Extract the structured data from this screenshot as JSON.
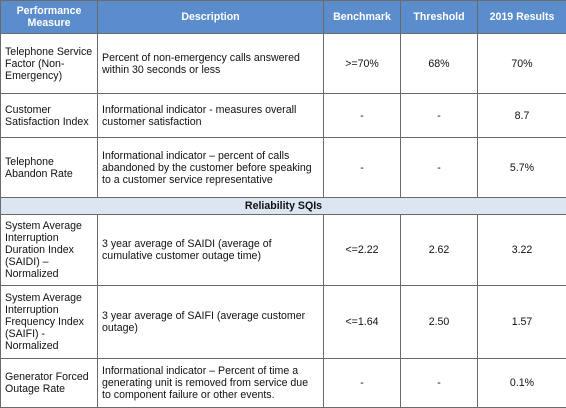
{
  "columns": [
    "Performance Measure",
    "Description",
    "Benchmark",
    "Threshold",
    "2019 Results"
  ],
  "rows_top": [
    {
      "measure": "Telephone Service Factor (Non-Emergency)",
      "description": "Percent of non-emergency calls answered within 30 seconds or less",
      "benchmark": ">=70%",
      "threshold": "68%",
      "result": "70%"
    },
    {
      "measure": "Customer Satisfaction Index",
      "description": "Informational indicator - measures overall customer satisfaction",
      "benchmark": "-",
      "threshold": "-",
      "result": "8.7"
    },
    {
      "measure": "Telephone Abandon Rate",
      "description": "Informational indicator – percent of calls abandoned by the customer before speaking to a customer service representative",
      "benchmark": "-",
      "threshold": "-",
      "result": "5.7%"
    }
  ],
  "section_title": "Reliability SQIs",
  "rows_reliability": [
    {
      "measure": "System Average Interruption Duration Index (SAIDI) – Normalized",
      "description": "3 year average of SAIDI (average of cumulative customer outage time)",
      "benchmark": "<=2.22",
      "threshold": "2.62",
      "result": "3.22"
    },
    {
      "measure": "System Average Interruption Frequency Index (SAIFI) - Normalized",
      "description": "3 year average of SAIFI (average customer outage)",
      "benchmark": "<=1.64",
      "threshold": "2.50",
      "result": "1.57"
    },
    {
      "measure": "Generator Forced Outage Rate",
      "description": "Informational indicator – Percent of time a generating unit is removed from service due to component failure or other events.",
      "benchmark": "-",
      "threshold": "-",
      "result": "0.1%"
    }
  ]
}
